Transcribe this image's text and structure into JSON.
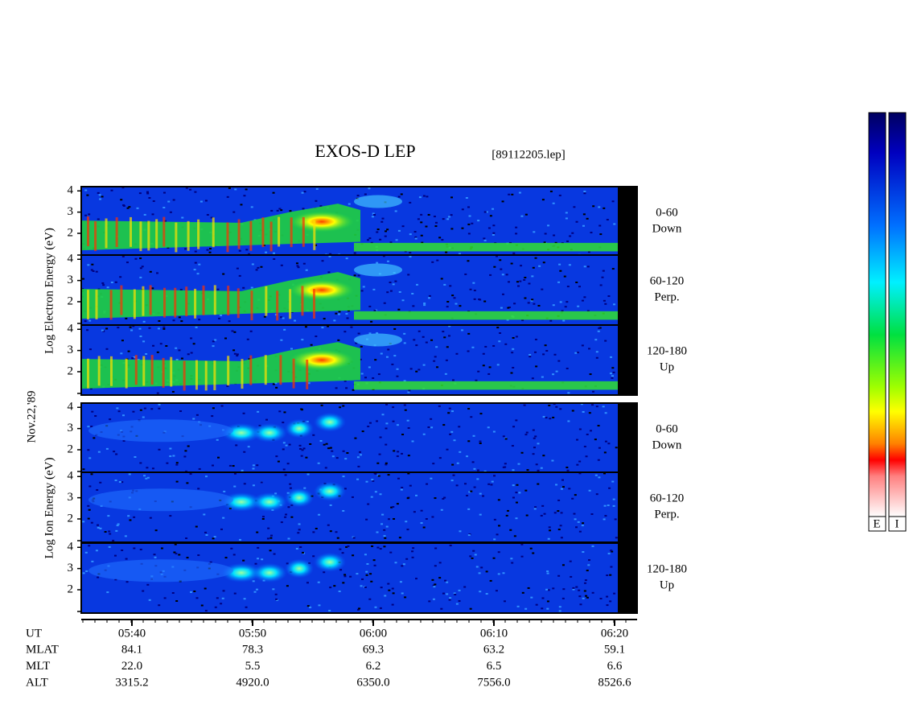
{
  "chart_data": {
    "type": "spectrogram",
    "title": "EXOS-D LEP",
    "file": "[89112205.lep]",
    "date_label": "Nov.22,'89",
    "groups": [
      {
        "species": "electron",
        "ylabel": "Log  Electron  Energy (eV)",
        "panels": [
          {
            "name": "0-60",
            "sub": "Down"
          },
          {
            "name": "60-120",
            "sub": "Perp."
          },
          {
            "name": "120-180",
            "sub": "Up"
          }
        ]
      },
      {
        "species": "ion",
        "ylabel": "Log  Ion  Energy (eV)",
        "panels": [
          {
            "name": "0-60",
            "sub": "Down"
          },
          {
            "name": "60-120",
            "sub": "Perp."
          },
          {
            "name": "120-180",
            "sub": "Up"
          }
        ]
      }
    ],
    "ylim": [
      0.9,
      4.2
    ],
    "yticks": [
      2,
      3,
      4
    ],
    "x": [
      "05:40",
      "05:50",
      "06:00",
      "06:10",
      "06:20"
    ],
    "orbit": [
      {
        "name": "UT"
      },
      {
        "name": "MLAT",
        "values": [
          "84.1",
          "78.3",
          "69.3",
          "63.2",
          "59.1"
        ]
      },
      {
        "name": "MLT",
        "values": [
          "22.0",
          "5.5",
          "6.2",
          "6.5",
          "6.6"
        ]
      },
      {
        "name": "ALT",
        "values": [
          "3315.2",
          "4920.0",
          "6350.0",
          "7556.0",
          "8526.6"
        ]
      }
    ],
    "colorbars": [
      "E",
      "I"
    ]
  }
}
